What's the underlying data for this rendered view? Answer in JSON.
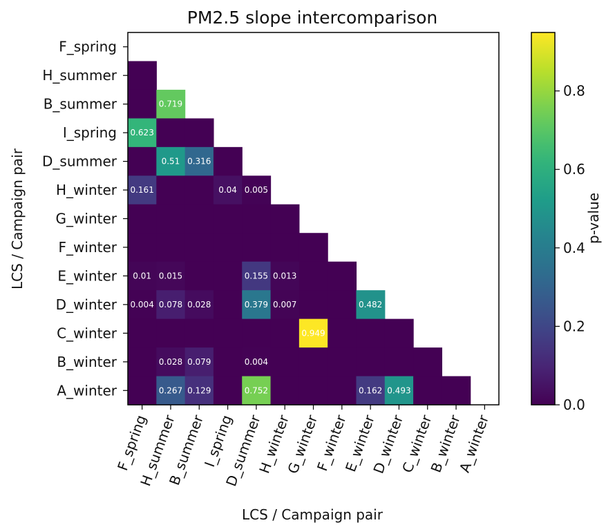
{
  "chart_data": {
    "type": "heatmap",
    "title": "PM2.5 slope intercomparison",
    "xlabel": "LCS / Campaign pair",
    "ylabel": "LCS / Campaign pair",
    "labels": [
      "F_spring",
      "H_summer",
      "B_summer",
      "I_spring",
      "D_summer",
      "H_winter",
      "G_winter",
      "F_winter",
      "E_winter",
      "D_winter",
      "C_winter",
      "B_winter",
      "A_winter"
    ],
    "values": [
      [
        null,
        null,
        null,
        null,
        null,
        null,
        null,
        null,
        null,
        null,
        null,
        null,
        null
      ],
      [
        0,
        null,
        null,
        null,
        null,
        null,
        null,
        null,
        null,
        null,
        null,
        null,
        null
      ],
      [
        0,
        0.719,
        null,
        null,
        null,
        null,
        null,
        null,
        null,
        null,
        null,
        null,
        null
      ],
      [
        0.623,
        0,
        0,
        null,
        null,
        null,
        null,
        null,
        null,
        null,
        null,
        null,
        null
      ],
      [
        0,
        0.51,
        0.316,
        0,
        null,
        null,
        null,
        null,
        null,
        null,
        null,
        null,
        null
      ],
      [
        0.161,
        0,
        0,
        0.04,
        0.005,
        null,
        null,
        null,
        null,
        null,
        null,
        null,
        null
      ],
      [
        0,
        0,
        0,
        0,
        0,
        0,
        null,
        null,
        null,
        null,
        null,
        null,
        null
      ],
      [
        0,
        0,
        0,
        0,
        0,
        0,
        0,
        null,
        null,
        null,
        null,
        null,
        null
      ],
      [
        0.01,
        0.015,
        0,
        0,
        0.155,
        0.013,
        0,
        0,
        null,
        null,
        null,
        null,
        null
      ],
      [
        0.004,
        0.078,
        0.028,
        0,
        0.379,
        0.007,
        0,
        0,
        0.482,
        null,
        null,
        null,
        null
      ],
      [
        0,
        0,
        0,
        0,
        0,
        0,
        0.949,
        0,
        0,
        0,
        null,
        null,
        null
      ],
      [
        0,
        0.028,
        0.079,
        0,
        0.004,
        0,
        0,
        0,
        0,
        0,
        0,
        null,
        null
      ],
      [
        0,
        0.267,
        0.129,
        0,
        0.752,
        0,
        0,
        0,
        0.162,
        0.493,
        0,
        0,
        null
      ]
    ],
    "cell_labels": [
      [
        null,
        null,
        null,
        null,
        null,
        null,
        null,
        null,
        null,
        null,
        null,
        null,
        null
      ],
      [
        null,
        null,
        null,
        null,
        null,
        null,
        null,
        null,
        null,
        null,
        null,
        null,
        null
      ],
      [
        null,
        "0.719",
        null,
        null,
        null,
        null,
        null,
        null,
        null,
        null,
        null,
        null,
        null
      ],
      [
        "0.623",
        null,
        null,
        null,
        null,
        null,
        null,
        null,
        null,
        null,
        null,
        null,
        null
      ],
      [
        null,
        "0.51",
        "0.316",
        null,
        null,
        null,
        null,
        null,
        null,
        null,
        null,
        null,
        null
      ],
      [
        "0.161",
        null,
        null,
        "0.04",
        "0.005",
        null,
        null,
        null,
        null,
        null,
        null,
        null,
        null
      ],
      [
        null,
        null,
        null,
        null,
        null,
        null,
        null,
        null,
        null,
        null,
        null,
        null,
        null
      ],
      [
        null,
        null,
        null,
        null,
        null,
        null,
        null,
        null,
        null,
        null,
        null,
        null,
        null
      ],
      [
        "0.01",
        "0.015",
        null,
        null,
        "0.155",
        "0.013",
        null,
        null,
        null,
        null,
        null,
        null,
        null
      ],
      [
        "0.004",
        "0.078",
        "0.028",
        null,
        "0.379",
        "0.007",
        null,
        null,
        "0.482",
        null,
        null,
        null,
        null
      ],
      [
        null,
        null,
        null,
        null,
        null,
        null,
        "0.949",
        null,
        null,
        null,
        null,
        null,
        null
      ],
      [
        null,
        "0.028",
        "0.079",
        null,
        "0.004",
        null,
        null,
        null,
        null,
        null,
        null,
        null,
        null
      ],
      [
        null,
        "0.267",
        "0.129",
        null,
        "0.752",
        null,
        null,
        null,
        "0.162",
        "0.493",
        null,
        null,
        null
      ]
    ],
    "colorbar": {
      "label": "p-value",
      "colormap": "viridis",
      "range": [
        0,
        0.949
      ],
      "ticks": [
        0.0,
        0.2,
        0.4,
        0.6,
        0.8
      ],
      "tick_labels": [
        "0.0",
        "0.2",
        "0.4",
        "0.6",
        "0.8"
      ]
    },
    "grid": false
  }
}
